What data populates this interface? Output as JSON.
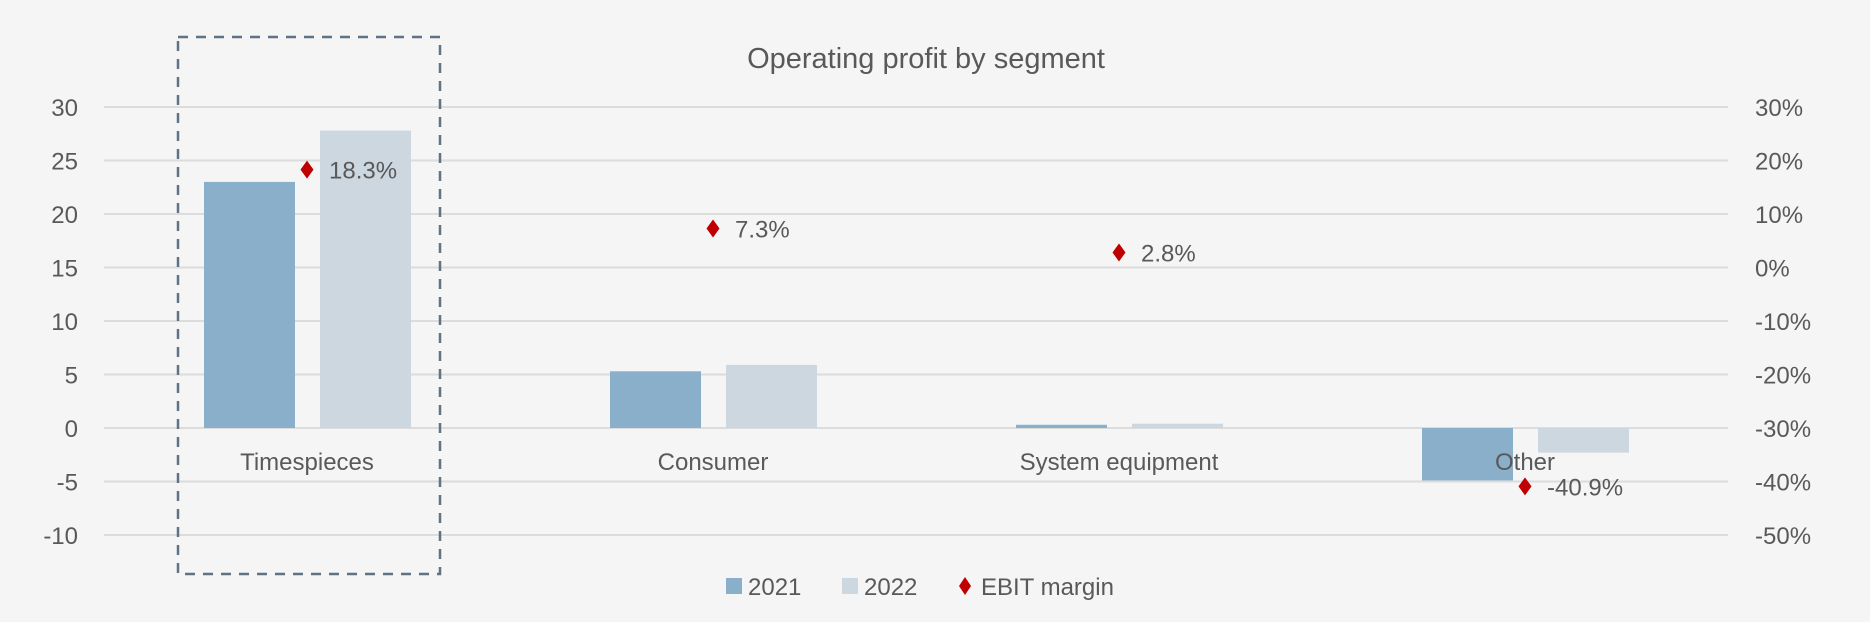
{
  "chart_data": {
    "type": "bar",
    "title": "Operating profit by segment",
    "categories": [
      "Timespieces",
      "Consumer",
      "System equipment",
      "Other"
    ],
    "series": [
      {
        "name": "2021",
        "color": "#8aafcb",
        "values": [
          23.0,
          5.3,
          0.3,
          -4.9
        ]
      },
      {
        "name": "2022",
        "color": "#cdd7e0",
        "values": [
          27.8,
          5.9,
          0.4,
          -2.3
        ]
      }
    ],
    "line_series": {
      "name": "EBIT margin",
      "color": "#c00000",
      "marker": "diamond",
      "axis": "right",
      "values": [
        18.3,
        7.3,
        2.8,
        -40.9
      ],
      "labels": [
        "18.3%",
        "7.3%",
        "2.8%",
        "-40.9%"
      ]
    },
    "ylim": [
      -10,
      30
    ],
    "yticks": [
      30,
      25,
      20,
      15,
      10,
      5,
      0,
      -5,
      -10
    ],
    "ytick_labels": [
      "30",
      "25",
      "20",
      "15",
      "10",
      "5",
      "0",
      "-5",
      "-10"
    ],
    "y2lim": [
      -50,
      30
    ],
    "y2ticks": [
      30,
      20,
      10,
      0,
      -10,
      -20,
      -30,
      -40,
      -50
    ],
    "y2tick_labels": [
      "30%",
      "20%",
      "10%",
      "0%",
      "-10%",
      "-20%",
      "-30%",
      "-40%",
      "-50%"
    ],
    "highlight_category": "Timespieces",
    "grid": true,
    "legend": [
      "2021",
      "2022",
      "EBIT margin"
    ],
    "legend_position": "bottom",
    "xlabel": "",
    "ylabel": ""
  }
}
